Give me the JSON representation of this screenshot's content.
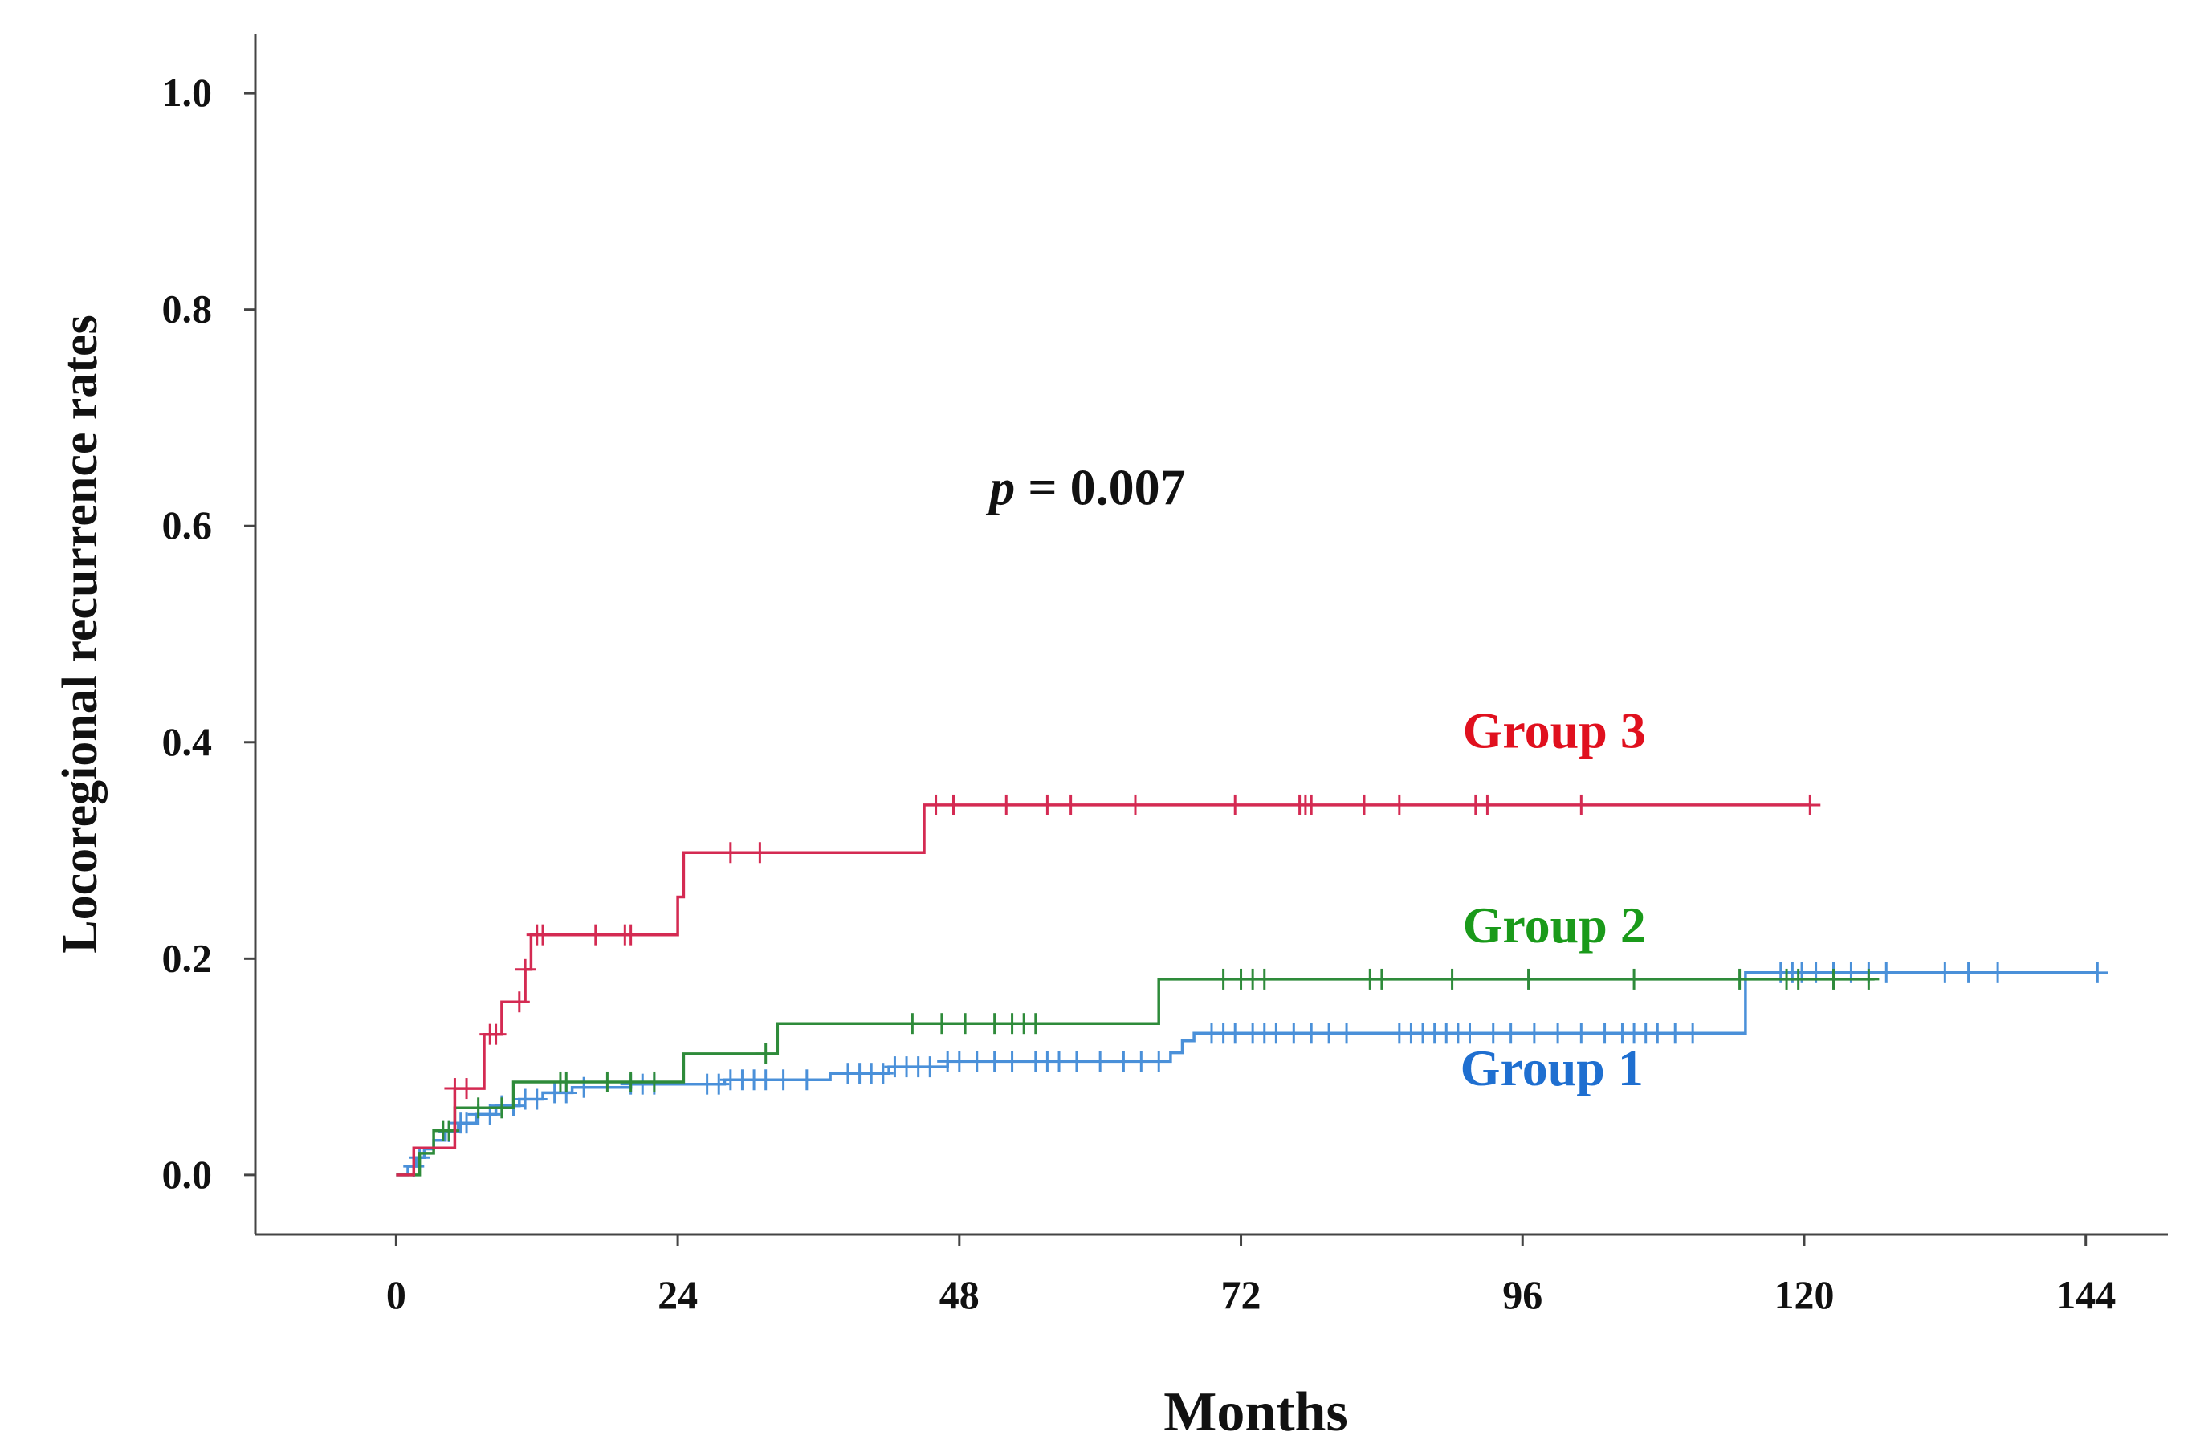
{
  "chart_data": {
    "type": "line",
    "subtype": "kaplan-meier-cumulative-incidence",
    "title": "",
    "xlabel": "Months",
    "ylabel": "Locoregional recurrence rates",
    "xlim": [
      -12,
      151
    ],
    "ylim": [
      -0.055,
      1.055
    ],
    "xticks": [
      0,
      24,
      48,
      72,
      96,
      120,
      144
    ],
    "xtick_labels": [
      "0",
      "24",
      "48",
      "72",
      "96",
      "120",
      "144"
    ],
    "yticks": [
      0.0,
      0.2,
      0.4,
      0.6,
      0.8,
      1.0
    ],
    "ytick_labels": [
      "0.0",
      "0.2",
      "0.4",
      "0.6",
      "0.8",
      "1.0"
    ],
    "grid": false,
    "annotation": {
      "italic": "p",
      "rest": " = 0.007",
      "x": 49,
      "y": 0.62
    },
    "series": [
      {
        "name": "Group 1",
        "color": "#4a90d9",
        "label_color": "#1f6fd0",
        "label_at": {
          "x": 98.5,
          "y": 0.083
        },
        "steps": [
          [
            0,
            0.0
          ],
          [
            1.0,
            0.008
          ],
          [
            1.7,
            0.016
          ],
          [
            2.4,
            0.024
          ],
          [
            3.2,
            0.032
          ],
          [
            4.2,
            0.04
          ],
          [
            5.3,
            0.048
          ],
          [
            6.8,
            0.056
          ],
          [
            8.5,
            0.064
          ],
          [
            10.5,
            0.07
          ],
          [
            12.5,
            0.076
          ],
          [
            15.0,
            0.081
          ],
          [
            20.0,
            0.084
          ],
          [
            28.0,
            0.088
          ],
          [
            37.0,
            0.094
          ],
          [
            42.0,
            0.1
          ],
          [
            47.0,
            0.105
          ],
          [
            66.0,
            0.113
          ],
          [
            67.0,
            0.124
          ],
          [
            68.0,
            0.131
          ],
          [
            115.0,
            0.187
          ],
          [
            145.0,
            0.187
          ]
        ],
        "censored": [
          1.5,
          2.0,
          4.5,
          5.5,
          6.0,
          7.0,
          8.0,
          9.0,
          10.0,
          11.0,
          12.0,
          13.5,
          14.5,
          16.0,
          20.0,
          21.0,
          22.0,
          26.5,
          27.5,
          28.5,
          29.5,
          30.5,
          31.5,
          33.0,
          35.0,
          38.5,
          39.5,
          40.5,
          41.5,
          42.5,
          43.5,
          44.5,
          45.5,
          47.0,
          48.0,
          49.5,
          51.0,
          52.5,
          54.5,
          55.5,
          56.5,
          58.0,
          60.0,
          62.0,
          63.5,
          65.0,
          69.5,
          70.5,
          71.5,
          73.0,
          74.0,
          75.0,
          76.5,
          78.0,
          79.5,
          81.0,
          85.5,
          86.5,
          87.5,
          88.5,
          89.5,
          90.5,
          91.5,
          93.5,
          95.0,
          97.0,
          99.0,
          101.0,
          103.0,
          104.5,
          105.5,
          106.5,
          107.5,
          109.0,
          110.5,
          118.0,
          119.0,
          119.8,
          121.0,
          122.5,
          124.0,
          125.5,
          127.0,
          132.0,
          134.0,
          136.5,
          145.0
        ]
      },
      {
        "name": "Group 2",
        "color": "#2e8b3a",
        "label_color": "#1a9a1a",
        "label_at": {
          "x": 98.7,
          "y": 0.215
        },
        "steps": [
          [
            0,
            0.0
          ],
          [
            2.0,
            0.02
          ],
          [
            3.2,
            0.041
          ],
          [
            5.0,
            0.062
          ],
          [
            10.0,
            0.086
          ],
          [
            24.5,
            0.112
          ],
          [
            32.5,
            0.14
          ],
          [
            65.0,
            0.181
          ],
          [
            126,
            0.181
          ]
        ],
        "censored": [
          4.0,
          4.5,
          7.0,
          9.0,
          14.0,
          14.5,
          18.0,
          20.0,
          22.0,
          31.5,
          44.0,
          46.5,
          48.5,
          51.0,
          52.5,
          53.5,
          54.5,
          70.5,
          72.0,
          73.0,
          74.0,
          83.0,
          84.0,
          90.0,
          96.5,
          105.5,
          114.5,
          118.5,
          119.5,
          122.5,
          125.5
        ]
      },
      {
        "name": "Group 3",
        "color": "#d42a52",
        "label_color": "#e0101e",
        "label_at": {
          "x": 98.7,
          "y": 0.395
        },
        "steps": [
          [
            0,
            0.0
          ],
          [
            1.5,
            0.025
          ],
          [
            5.0,
            0.08
          ],
          [
            7.5,
            0.13
          ],
          [
            9.0,
            0.16
          ],
          [
            11.0,
            0.19
          ],
          [
            11.5,
            0.222
          ],
          [
            24.0,
            0.257
          ],
          [
            24.5,
            0.298
          ],
          [
            45.0,
            0.342
          ],
          [
            120.5,
            0.342
          ]
        ],
        "censored": [
          5.0,
          6.0,
          8.0,
          8.5,
          10.5,
          11.0,
          12.0,
          12.5,
          17.0,
          19.5,
          20.0,
          28.5,
          31.0,
          46.0,
          47.5,
          52.0,
          55.5,
          57.5,
          63.0,
          71.5,
          77.0,
          77.5,
          78.0,
          82.5,
          85.5,
          92.0,
          93.0,
          101.0,
          120.5
        ]
      }
    ]
  }
}
